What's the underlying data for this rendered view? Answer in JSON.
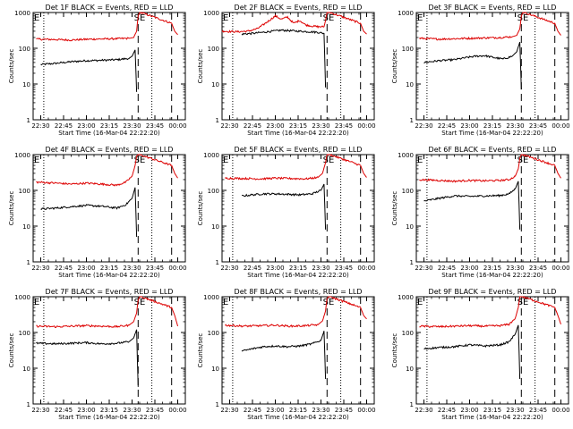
{
  "colors": {
    "events": "#000000",
    "lld": "#dd0000",
    "axis": "#000000",
    "background": "#ffffff"
  },
  "shared": {
    "ylabel": "Counts/sec",
    "xlabel": "Start Time (16-Mar-04 22:22:20)",
    "corner_labels": [
      "E",
      "SE"
    ],
    "x_ticks": [
      "22:30",
      "22:45",
      "23:00",
      "23:15",
      "23:30",
      "23:45",
      "00:00"
    ],
    "x_tick_values_min": [
      0,
      15,
      30,
      45,
      60,
      75,
      90
    ],
    "x_range_min": [
      -5,
      95
    ],
    "y_ticks": [
      "1",
      "10",
      "100",
      "1000"
    ],
    "y_tick_values": [
      1,
      10,
      100,
      1000
    ],
    "y_range": [
      1,
      1000
    ],
    "y_scale": "log",
    "vertical_markers": [
      {
        "x_min": 2,
        "style": "dotted"
      },
      {
        "x_min": 64,
        "style": "dashed"
      },
      {
        "x_min": 73,
        "style": "dotted"
      },
      {
        "x_min": 86,
        "style": "dashed"
      }
    ]
  },
  "chart_data": [
    {
      "type": "line",
      "title": "Det 1F BLACK = Events, RED = LLD",
      "xlabel": "Start Time (16-Mar-04 22:22:20)",
      "ylabel": "Counts/sec",
      "series": [
        {
          "name": "Events",
          "color": "#000000",
          "x": [
            0,
            10,
            20,
            30,
            40,
            50,
            58,
            60,
            62,
            63
          ],
          "values": [
            35,
            38,
            42,
            45,
            46,
            48,
            52,
            60,
            90,
            6
          ]
        },
        {
          "name": "LLD",
          "color": "#dd0000",
          "x": [
            -3,
            10,
            20,
            30,
            40,
            50,
            58,
            61,
            63,
            64,
            65,
            66,
            86,
            88,
            90
          ],
          "values": [
            180,
            175,
            170,
            178,
            182,
            185,
            190,
            200,
            300,
            800,
            1000,
            1000,
            500,
            300,
            240
          ]
        }
      ]
    },
    {
      "type": "line",
      "title": "Det 2F BLACK = Events, RED = LLD",
      "xlabel": "Start Time (16-Mar-04 22:22:20)",
      "ylabel": "Counts/sec",
      "series": [
        {
          "name": "Events",
          "color": "#000000",
          "x": [
            8,
            15,
            22,
            28,
            34,
            40,
            46,
            52,
            58,
            62,
            63
          ],
          "values": [
            250,
            260,
            280,
            300,
            320,
            310,
            300,
            290,
            280,
            260,
            8
          ]
        },
        {
          "name": "LLD",
          "color": "#dd0000",
          "x": [
            -5,
            5,
            12,
            18,
            22,
            26,
            30,
            34,
            38,
            42,
            46,
            50,
            54,
            58,
            62,
            63,
            64,
            65,
            66,
            86,
            88,
            90
          ],
          "values": [
            300,
            290,
            300,
            350,
            450,
            600,
            800,
            650,
            750,
            500,
            600,
            450,
            420,
            400,
            400,
            600,
            1000,
            1000,
            1000,
            500,
            300,
            250
          ]
        }
      ]
    },
    {
      "type": "line",
      "title": "Det 3F BLACK = Events, RED = LLD",
      "xlabel": "Start Time (16-Mar-04 22:22:20)",
      "ylabel": "Counts/sec",
      "series": [
        {
          "name": "Events",
          "color": "#000000",
          "x": [
            0,
            10,
            20,
            28,
            34,
            40,
            46,
            52,
            58,
            61,
            63,
            64
          ],
          "values": [
            40,
            45,
            48,
            55,
            60,
            62,
            55,
            50,
            60,
            80,
            150,
            7
          ]
        },
        {
          "name": "LLD",
          "color": "#dd0000",
          "x": [
            -3,
            10,
            20,
            30,
            40,
            50,
            58,
            61,
            63,
            64,
            65,
            66,
            86,
            88,
            90
          ],
          "values": [
            190,
            180,
            185,
            190,
            195,
            200,
            210,
            230,
            350,
            800,
            1000,
            1000,
            500,
            300,
            230
          ]
        }
      ]
    },
    {
      "type": "line",
      "title": "Det 4F BLACK = Events, RED = LLD",
      "xlabel": "Start Time (16-Mar-04 22:22:20)",
      "ylabel": "Counts/sec",
      "series": [
        {
          "name": "Events",
          "color": "#000000",
          "x": [
            0,
            10,
            20,
            30,
            40,
            50,
            56,
            60,
            62,
            63
          ],
          "values": [
            30,
            32,
            35,
            38,
            36,
            32,
            40,
            60,
            120,
            5
          ]
        },
        {
          "name": "LLD",
          "color": "#dd0000",
          "x": [
            -3,
            10,
            20,
            30,
            40,
            50,
            56,
            60,
            62,
            63,
            64,
            65,
            86,
            88,
            90
          ],
          "values": [
            170,
            160,
            150,
            160,
            150,
            140,
            170,
            250,
            500,
            900,
            1000,
            1000,
            500,
            300,
            220
          ]
        }
      ]
    },
    {
      "type": "line",
      "title": "Det 5F BLACK = Events, RED = LLD",
      "xlabel": "Start Time (16-Mar-04 22:22:20)",
      "ylabel": "Counts/sec",
      "series": [
        {
          "name": "Events",
          "color": "#000000",
          "x": [
            8,
            15,
            22,
            30,
            38,
            46,
            54,
            60,
            62,
            63
          ],
          "values": [
            70,
            75,
            80,
            80,
            78,
            75,
            80,
            100,
            150,
            8
          ]
        },
        {
          "name": "LLD",
          "color": "#dd0000",
          "x": [
            -3,
            10,
            20,
            30,
            40,
            50,
            58,
            61,
            63,
            64,
            65,
            66,
            86,
            88,
            90
          ],
          "values": [
            220,
            215,
            210,
            220,
            215,
            210,
            230,
            300,
            600,
            1000,
            1000,
            1000,
            500,
            300,
            230
          ]
        }
      ]
    },
    {
      "type": "line",
      "title": "Det 6F BLACK = Events, RED = LLD",
      "xlabel": "Start Time (16-Mar-04 22:22:20)",
      "ylabel": "Counts/sec",
      "series": [
        {
          "name": "Events",
          "color": "#000000",
          "x": [
            0,
            10,
            20,
            30,
            40,
            50,
            56,
            60,
            62,
            63
          ],
          "values": [
            50,
            60,
            70,
            68,
            70,
            72,
            80,
            110,
            180,
            8
          ]
        },
        {
          "name": "LLD",
          "color": "#dd0000",
          "x": [
            -3,
            10,
            20,
            30,
            40,
            50,
            56,
            60,
            62,
            63,
            64,
            65,
            86,
            88,
            90
          ],
          "values": [
            200,
            190,
            180,
            190,
            185,
            190,
            200,
            250,
            400,
            800,
            1000,
            1000,
            500,
            300,
            220
          ]
        }
      ]
    },
    {
      "type": "line",
      "title": "Det 7F BLACK = Events, RED = LLD",
      "xlabel": "Start Time (16-Mar-04 22:22:20)",
      "ylabel": "Counts/sec",
      "series": [
        {
          "name": "Events",
          "color": "#000000",
          "x": [
            -3,
            10,
            20,
            30,
            40,
            50,
            58,
            61,
            63,
            64
          ],
          "values": [
            50,
            48,
            50,
            52,
            48,
            50,
            55,
            70,
            120,
            3
          ]
        },
        {
          "name": "LLD",
          "color": "#dd0000",
          "x": [
            -3,
            10,
            20,
            30,
            40,
            50,
            58,
            61,
            63,
            64,
            65,
            66,
            86,
            88,
            90
          ],
          "values": [
            150,
            145,
            150,
            155,
            150,
            145,
            160,
            200,
            350,
            800,
            1000,
            1000,
            500,
            300,
            150
          ]
        }
      ]
    },
    {
      "type": "line",
      "title": "Det 8F BLACK = Events, RED = LLD",
      "xlabel": "Start Time (16-Mar-04 22:22:20)",
      "ylabel": "Counts/sec",
      "series": [
        {
          "name": "Events",
          "color": "#000000",
          "x": [
            8,
            15,
            22,
            30,
            38,
            46,
            54,
            60,
            62,
            63
          ],
          "values": [
            30,
            35,
            40,
            42,
            40,
            42,
            48,
            60,
            110,
            5
          ]
        },
        {
          "name": "LLD",
          "color": "#dd0000",
          "x": [
            -3,
            10,
            20,
            30,
            40,
            50,
            58,
            61,
            63,
            64,
            65,
            66,
            86,
            88,
            90
          ],
          "values": [
            160,
            150,
            155,
            160,
            150,
            155,
            165,
            210,
            400,
            900,
            1000,
            1000,
            500,
            300,
            240
          ]
        }
      ]
    },
    {
      "type": "line",
      "title": "Det 9F BLACK = Events, RED = LLD",
      "xlabel": "Start Time (16-Mar-04 22:22:20)",
      "ylabel": "Counts/sec",
      "series": [
        {
          "name": "Events",
          "color": "#000000",
          "x": [
            0,
            10,
            20,
            30,
            40,
            50,
            56,
            60,
            62,
            63
          ],
          "values": [
            35,
            38,
            40,
            45,
            42,
            45,
            55,
            90,
            160,
            5
          ]
        },
        {
          "name": "LLD",
          "color": "#dd0000",
          "x": [
            -3,
            10,
            20,
            30,
            40,
            50,
            56,
            60,
            62,
            63,
            64,
            65,
            86,
            88,
            90
          ],
          "values": [
            150,
            145,
            150,
            155,
            150,
            155,
            170,
            250,
            500,
            1000,
            1000,
            1000,
            500,
            300,
            170
          ]
        }
      ]
    }
  ]
}
